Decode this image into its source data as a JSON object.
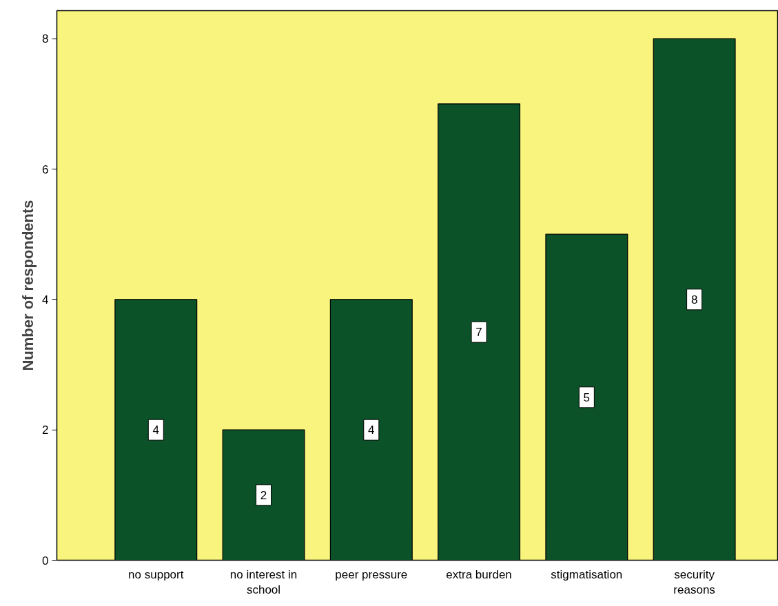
{
  "chart_data": {
    "type": "bar",
    "ylabel": "Number of respondents",
    "categories": [
      "no support",
      "no interest in school",
      "peer pressure",
      "extra burden",
      "stigmatisation",
      "security reasons"
    ],
    "values": [
      4,
      2,
      4,
      7,
      5,
      8
    ],
    "color": "#0b5229",
    "ylim": [
      0,
      8.43
    ],
    "yticks": [
      0,
      2,
      4,
      6,
      8
    ],
    "data_labels": true,
    "grid": false
  }
}
